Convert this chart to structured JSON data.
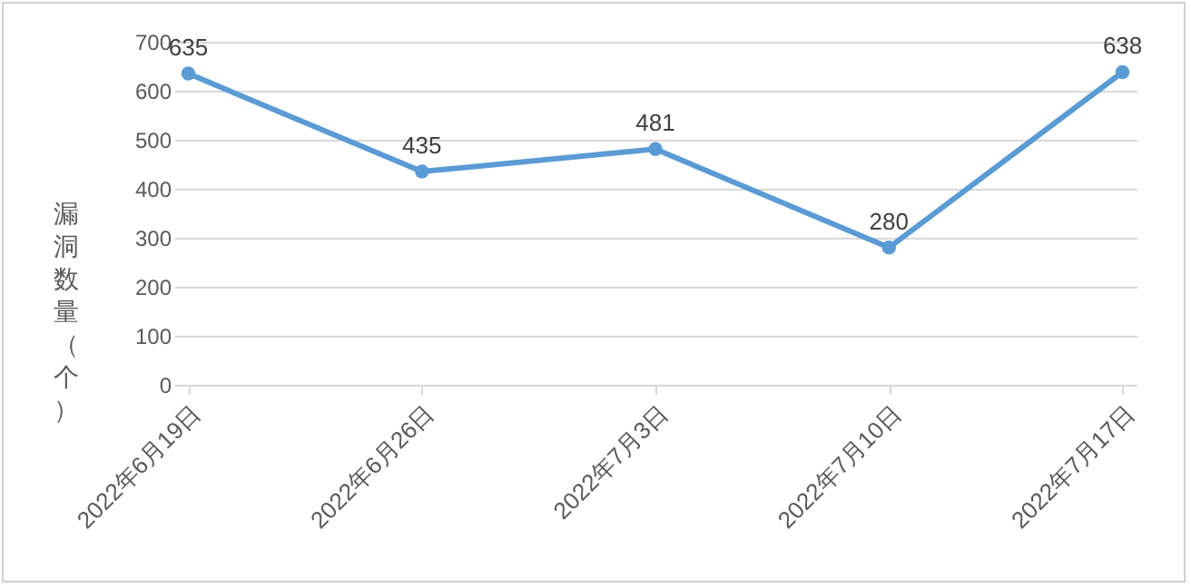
{
  "chart_data": {
    "type": "line",
    "ylabel": "漏洞数量（个）",
    "categories": [
      "2022年6月19日",
      "2022年6月26日",
      "2022年7月3日",
      "2022年7月10日",
      "2022年7月17日"
    ],
    "series": [
      {
        "color": "#5b9bd5",
        "values": [
          635,
          435,
          481,
          280,
          638
        ]
      }
    ],
    "ylim": [
      0,
      700
    ],
    "yticks": [
      0,
      100,
      200,
      300,
      400,
      500,
      600,
      700
    ],
    "grid": "y",
    "marker": "circle",
    "line_style": "solid",
    "data_labels": true,
    "legend": false
  }
}
